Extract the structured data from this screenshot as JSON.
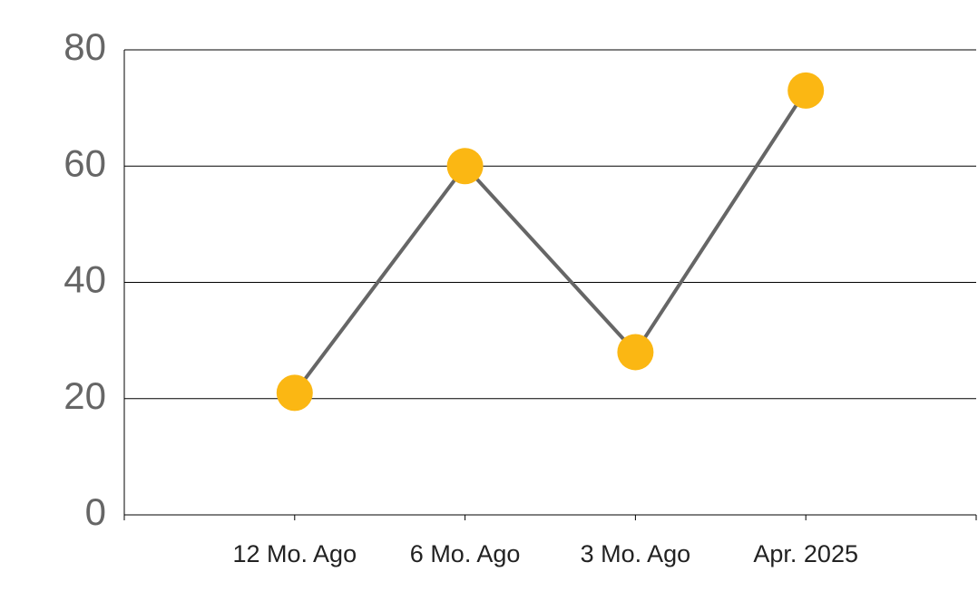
{
  "chart_data": {
    "type": "line",
    "categories": [
      "12 Mo. Ago",
      "6 Mo. Ago",
      "3 Mo. Ago",
      "Apr. 2025"
    ],
    "series": [
      {
        "values": [
          21,
          60,
          28,
          73
        ],
        "color": "#666666",
        "marker_color": "#fbb713"
      }
    ],
    "ylim": [
      0,
      80
    ],
    "yticks": [
      0,
      20,
      40,
      60,
      80
    ],
    "grid": true
  }
}
